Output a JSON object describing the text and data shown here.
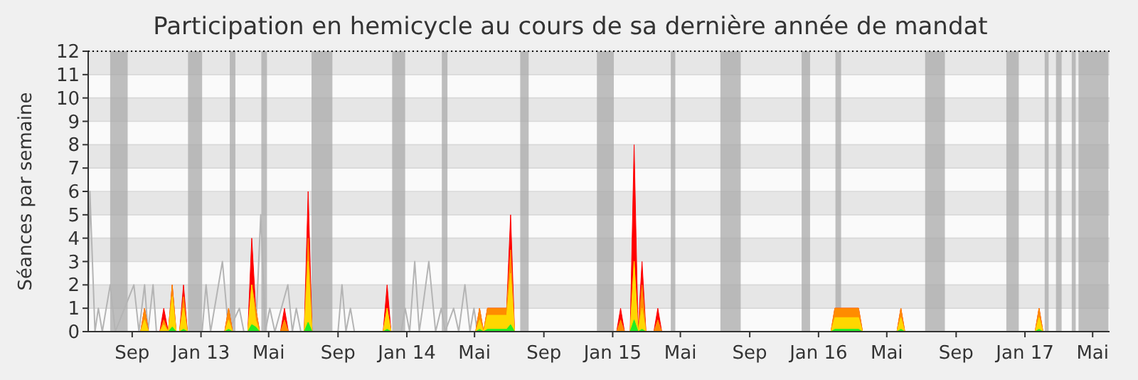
{
  "chart_data": {
    "type": "area",
    "title": "Participation en hemicycle au cours de sa dernière année de mandat",
    "ylabel": "Séances par semaine",
    "x": [
      "2012-09-16",
      "2012-09-23",
      "2012-09-30",
      "2012-10-20",
      "2012-10-27",
      "2012-11-04",
      "2012-11-11",
      "2012-11-18",
      "2012-11-24",
      "2012-12-01",
      "2012-12-08",
      "2013-02-12",
      "2013-02-19",
      "2013-02-26",
      "2013-03-25",
      "2013-04-01",
      "2013-04-08",
      "2013-04-15",
      "2013-05-22",
      "2013-05-29",
      "2013-06-05",
      "2013-07-03",
      "2013-07-10",
      "2013-07-17",
      "2013-11-20",
      "2013-11-27",
      "2013-12-04",
      "2014-05-03",
      "2014-05-10",
      "2014-05-17",
      "2014-05-24",
      "2014-06-27",
      "2014-07-04",
      "2014-07-11",
      "2015-01-08",
      "2015-01-15",
      "2015-01-22",
      "2015-02-01",
      "2015-02-08",
      "2015-02-15",
      "2015-02-22",
      "2015-03-01",
      "2015-03-15",
      "2015-03-22",
      "2015-03-29",
      "2016-01-23",
      "2016-01-30",
      "2016-03-12",
      "2016-03-19",
      "2016-05-19",
      "2016-05-26",
      "2016-06-02",
      "2017-01-19",
      "2017-01-26",
      "2017-02-02"
    ],
    "series": [
      {
        "type": "line",
        "color": "#b4b4b4",
        "x": [
          "2012-06-15",
          "2012-06-18",
          "2012-06-27",
          "2012-07-03",
          "2012-07-10",
          "2012-07-24",
          "2012-08-02",
          "2012-09-04",
          "2012-09-13",
          "2012-09-23",
          "2012-09-29",
          "2012-10-08",
          "2012-10-14",
          "2013-01-03",
          "2013-01-10",
          "2013-01-18",
          "2013-02-08",
          "2013-02-19",
          "2013-03-10",
          "2013-03-18",
          "2013-04-08",
          "2013-04-17",
          "2013-04-25",
          "2013-05-03",
          "2013-05-12",
          "2013-06-04",
          "2013-06-12",
          "2013-06-19",
          "2013-06-27",
          "2013-09-01",
          "2013-09-08",
          "2013-09-15",
          "2013-09-23",
          "2013-09-30",
          "2013-12-22",
          "2013-12-29",
          "2014-01-06",
          "2014-01-15",
          "2014-01-23",
          "2014-01-29",
          "2014-02-09",
          "2014-02-21",
          "2014-03-03",
          "2014-03-10",
          "2014-03-25",
          "2014-04-03",
          "2014-04-14",
          "2014-04-23",
          "2014-04-30",
          "2014-05-06",
          "2017-05-31"
        ],
        "values": [
          0,
          6,
          0,
          1,
          0,
          2,
          0,
          2,
          0,
          2,
          0,
          2,
          0,
          0,
          2,
          0,
          3,
          0,
          1,
          0,
          0,
          5,
          0,
          1,
          0,
          2,
          0,
          1,
          0,
          0,
          2,
          0,
          1,
          0,
          0,
          1,
          0,
          3,
          0,
          1,
          3,
          0,
          1,
          0,
          1,
          0,
          2,
          0,
          1,
          0,
          0
        ]
      },
      {
        "color": "#ff0000",
        "values": [
          0,
          1,
          0,
          0,
          1,
          0,
          2,
          0,
          0,
          2,
          0,
          0,
          1,
          0,
          0,
          4,
          1,
          0,
          0,
          1,
          0,
          0,
          6,
          0,
          0,
          2,
          0,
          0,
          1,
          0,
          1,
          1,
          5,
          0,
          0,
          1,
          0,
          0,
          8,
          0,
          3,
          0,
          0,
          1,
          0,
          0,
          1,
          1,
          0,
          0,
          1,
          0,
          0,
          1,
          0
        ]
      },
      {
        "color": "#ff8c00",
        "values": [
          0,
          1,
          0,
          0,
          0.5,
          0,
          2,
          0,
          0,
          1.5,
          0,
          0,
          1,
          0,
          0,
          2,
          1,
          0,
          0,
          0.5,
          0,
          0,
          4,
          0,
          0,
          1,
          0,
          0,
          1,
          0,
          1,
          1,
          3.5,
          0,
          0,
          0.5,
          0,
          0,
          3,
          0,
          2,
          0,
          0,
          0.5,
          0,
          0,
          1,
          1,
          0,
          0,
          1,
          0,
          0,
          1,
          0
        ]
      },
      {
        "color": "#ffd700",
        "values": [
          0,
          0.5,
          0,
          0,
          0.3,
          0,
          1.5,
          0,
          0,
          1,
          0,
          0,
          0.5,
          0,
          0,
          2,
          0.5,
          0,
          0,
          0,
          0,
          0,
          3,
          0,
          0,
          1,
          0,
          0,
          0.5,
          0,
          0.7,
          0.7,
          2.5,
          0,
          0,
          0,
          0,
          0,
          3,
          0,
          1,
          0,
          0,
          0,
          0,
          0,
          0.6,
          0.6,
          0,
          0,
          0.6,
          0,
          0,
          0.6,
          0
        ]
      },
      {
        "color": "#22ee22",
        "values": [
          0,
          0,
          0,
          0,
          0,
          0,
          0.2,
          0,
          0,
          0.1,
          0,
          0,
          0.1,
          0,
          0,
          0.3,
          0.2,
          0,
          0,
          0,
          0,
          0,
          0.4,
          0,
          0,
          0.1,
          0,
          0,
          0.1,
          0,
          0.1,
          0.1,
          0.3,
          0,
          0,
          0,
          0,
          0,
          0.5,
          0,
          0.1,
          0,
          0,
          0,
          0,
          0,
          0.1,
          0.1,
          0,
          0,
          0.1,
          0,
          0,
          0.1,
          0
        ]
      }
    ],
    "xlim": [
      "2012-06-15",
      "2017-05-31"
    ],
    "xticks": [
      {
        "value": "2012-09-01",
        "label": "Sep"
      },
      {
        "value": "2013-01-01",
        "label": "Jan 13"
      },
      {
        "value": "2013-05-01",
        "label": "Mai"
      },
      {
        "value": "2013-09-01",
        "label": "Sep"
      },
      {
        "value": "2014-01-01",
        "label": "Jan 14"
      },
      {
        "value": "2014-05-01",
        "label": "Mai"
      },
      {
        "value": "2014-09-01",
        "label": "Sep"
      },
      {
        "value": "2015-01-01",
        "label": "Jan 15"
      },
      {
        "value": "2015-05-01",
        "label": "Mai"
      },
      {
        "value": "2015-09-01",
        "label": "Sep"
      },
      {
        "value": "2016-01-01",
        "label": "Jan 16"
      },
      {
        "value": "2016-05-01",
        "label": "Mai"
      },
      {
        "value": "2016-09-01",
        "label": "Sep"
      },
      {
        "value": "2017-01-01",
        "label": "Jan 17"
      },
      {
        "value": "2017-05-01",
        "label": "Mai"
      }
    ],
    "ylim": [
      0,
      12
    ],
    "yticks": [
      0,
      1,
      2,
      3,
      4,
      5,
      6,
      7,
      8,
      9,
      10,
      11,
      12
    ],
    "grid": true,
    "bands": [
      {
        "axis": "x",
        "from": "2012-07-24",
        "to": "2012-08-24",
        "color": "#aaaaaa"
      },
      {
        "axis": "x",
        "from": "2012-12-09",
        "to": "2013-01-03",
        "color": "#aaaaaa"
      },
      {
        "axis": "x",
        "from": "2013-02-21",
        "to": "2013-03-03",
        "color": "#aaaaaa"
      },
      {
        "axis": "x",
        "from": "2013-04-18",
        "to": "2013-04-28",
        "color": "#aaaaaa"
      },
      {
        "axis": "x",
        "from": "2013-07-16",
        "to": "2013-08-22",
        "color": "#aaaaaa"
      },
      {
        "axis": "x",
        "from": "2013-12-06",
        "to": "2013-12-29",
        "color": "#aaaaaa"
      },
      {
        "axis": "x",
        "from": "2014-03-04",
        "to": "2014-03-14",
        "color": "#aaaaaa"
      },
      {
        "axis": "x",
        "from": "2014-07-21",
        "to": "2014-08-05",
        "color": "#aaaaaa"
      },
      {
        "axis": "x",
        "from": "2014-12-04",
        "to": "2015-01-03",
        "color": "#aaaaaa"
      },
      {
        "axis": "x",
        "from": "2015-04-14",
        "to": "2015-04-22",
        "color": "#aaaaaa"
      },
      {
        "axis": "x",
        "from": "2015-07-11",
        "to": "2015-08-16",
        "color": "#aaaaaa"
      },
      {
        "axis": "x",
        "from": "2015-12-02",
        "to": "2015-12-17",
        "color": "#aaaaaa"
      },
      {
        "axis": "x",
        "from": "2016-01-31",
        "to": "2016-02-10",
        "color": "#aaaaaa"
      },
      {
        "axis": "x",
        "from": "2016-07-08",
        "to": "2016-08-12",
        "color": "#aaaaaa"
      },
      {
        "axis": "x",
        "from": "2016-11-29",
        "to": "2016-12-21",
        "color": "#aaaaaa"
      },
      {
        "axis": "x",
        "from": "2017-02-05",
        "to": "2017-02-12",
        "color": "#aaaaaa"
      },
      {
        "axis": "x",
        "from": "2017-02-25",
        "to": "2017-03-07",
        "color": "#aaaaaa"
      },
      {
        "axis": "x",
        "from": "2017-03-25",
        "to": "2017-04-01",
        "color": "#aaaaaa"
      },
      {
        "axis": "x",
        "from": "2017-04-06",
        "to": "2017-05-29",
        "color": "#aaaaaa"
      }
    ]
  }
}
